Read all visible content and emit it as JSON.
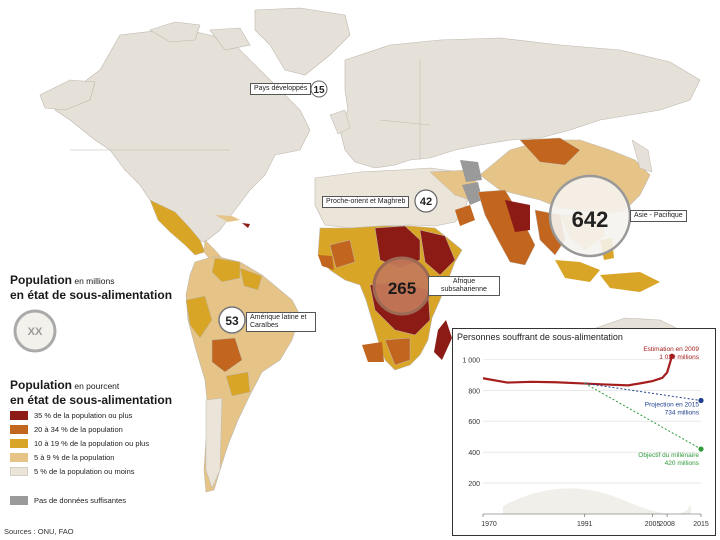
{
  "colors": {
    "ocean": "#ffffff",
    "land_no_data": "#e6e1d8",
    "cat_35_plus": "#8c1b16",
    "cat_20_34": "#c2651e",
    "cat_10_19": "#d9a527",
    "cat_5_9": "#e6c487",
    "cat_5_less": "#ebe5d9",
    "cat_insufficient": "#9a9a9a",
    "line_estimate": "#a51d1d",
    "line_projection": "#1d3f8c",
    "line_objective": "#2f9a3a"
  },
  "regions": [
    {
      "label": "Pays développés",
      "value": "15"
    },
    {
      "label": "Proche-orient et Maghreb",
      "value": "42"
    },
    {
      "label": "Asie - Pacifique",
      "value": "642"
    },
    {
      "label": "Afrique subsaharienne",
      "value": "265"
    },
    {
      "label": "Amérique latine et Caraïbes",
      "value": "53"
    }
  ],
  "legend_bubble": {
    "title_bold_1": "Population",
    "title_small_1": " en millions",
    "title_line2": "en état de sous-alimentation",
    "sample_value": "XX"
  },
  "legend_percent": {
    "title_bold_1": "Population",
    "title_small_1": " en pourcent",
    "title_line2": "en état de sous-alimentation",
    "items": [
      {
        "label": "35 % de la population ou plus",
        "color": "#8c1b16"
      },
      {
        "label": "20 à 34 % de la population",
        "color": "#c2651e"
      },
      {
        "label": "10 à 19 % de la population ou plus",
        "color": "#d9a527"
      },
      {
        "label": "5 à 9 % de la population",
        "color": "#e6c487"
      },
      {
        "label": "5 % de la population ou moins",
        "color": "#ebe5d9"
      },
      {
        "label": "Pas de données suffisantes",
        "color": "#9a9a9a"
      }
    ]
  },
  "sources": "Sources : ONU, FAO",
  "inset": {
    "title": "Personnes souffrant de sous-alimentation",
    "annotations": {
      "estimate": "Estimation en 2009\n1 020 millions",
      "projection": "Projection en 2015\n734 millions",
      "objective": "Objectif du millénaire\n420 millions"
    }
  },
  "chart_data": {
    "type": "line",
    "title": "Personnes souffrant de sous-alimentation",
    "x_ticks": [
      "1970",
      "1991",
      "2005",
      "2008",
      "2015"
    ],
    "y_ticks": [
      "200",
      "400",
      "600",
      "800",
      "1 000"
    ],
    "ylim": [
      0,
      1080
    ],
    "xlim": [
      1970,
      2015
    ],
    "series": [
      {
        "name": "Estimation",
        "color": "#a51d1d",
        "x": [
          1970,
          1975,
          1980,
          1985,
          1990,
          1995,
          2000,
          2003,
          2005,
          2007,
          2008,
          2009
        ],
        "y": [
          878,
          850,
          855,
          852,
          845,
          838,
          832,
          848,
          860,
          880,
          915,
          1020
        ]
      },
      {
        "name": "Projection",
        "color": "#1d3f8c",
        "x": [
          1991,
          2015
        ],
        "y": [
          845,
          734
        ]
      },
      {
        "name": "Objectif du millénaire",
        "color": "#2f9a3a",
        "x": [
          1991,
          2015
        ],
        "y": [
          845,
          420
        ]
      }
    ],
    "grid": true
  }
}
